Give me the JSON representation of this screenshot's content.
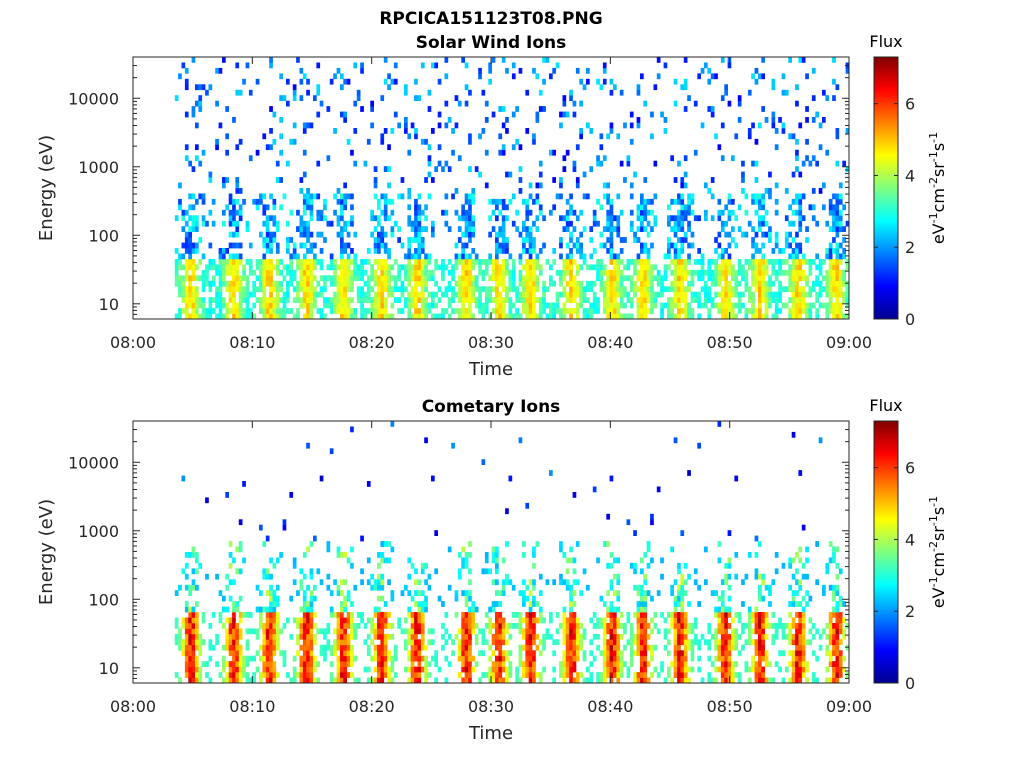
{
  "figure": {
    "filename_title": "RPCICA151123T08.PNG"
  },
  "chart_data": [
    {
      "type": "heatmap",
      "title": "Solar Wind Ions",
      "xlabel": "Time",
      "ylabel": "Energy (eV)",
      "x_ticks": [
        "08:00",
        "08:10",
        "08:20",
        "08:30",
        "08:40",
        "08:50",
        "09:00"
      ],
      "x_range_minutes": [
        0,
        60
      ],
      "y_scale": "log",
      "y_ticks": [
        {
          "value": 10,
          "label": "10"
        },
        {
          "value": 100,
          "label": "100"
        },
        {
          "value": 1000,
          "label": "1000"
        },
        {
          "value": 10000,
          "label": "10000"
        }
      ],
      "ylim": [
        6,
        40000
      ],
      "data_start_minute": 3.5,
      "bursts_minute": [
        4.7,
        8.3,
        11.3,
        14.4,
        17.5,
        20.7,
        23.7,
        27.8,
        30.5,
        33.2,
        36.6,
        40.0,
        42.6,
        45.7,
        49.5,
        52.4,
        55.6,
        58.8
      ],
      "burst_peak_flux": 4.8,
      "background_flux": 2.8,
      "colorbar": {
        "title": "Flux",
        "label": "eV-1cm-2sr-1s-1",
        "range": [
          0,
          7.3
        ],
        "ticks": [
          0,
          2,
          4,
          6
        ],
        "colormap": "jet"
      }
    },
    {
      "type": "heatmap",
      "title": "Cometary Ions",
      "xlabel": "Time",
      "ylabel": "Energy (eV)",
      "x_ticks": [
        "08:00",
        "08:10",
        "08:20",
        "08:30",
        "08:40",
        "08:50",
        "09:00"
      ],
      "x_range_minutes": [
        0,
        60
      ],
      "y_scale": "log",
      "y_ticks": [
        {
          "value": 10,
          "label": "10"
        },
        {
          "value": 100,
          "label": "100"
        },
        {
          "value": 1000,
          "label": "1000"
        },
        {
          "value": 10000,
          "label": "10000"
        }
      ],
      "ylim": [
        6,
        40000
      ],
      "data_start_minute": 3.5,
      "bursts_minute": [
        4.7,
        8.3,
        11.3,
        14.4,
        17.5,
        20.7,
        23.7,
        27.8,
        30.5,
        33.2,
        36.6,
        40.0,
        42.6,
        45.7,
        49.5,
        52.4,
        55.6,
        58.8
      ],
      "burst_peak_flux": 7.0,
      "background_flux": 0.8,
      "colorbar": {
        "title": "Flux",
        "label": "eV-1cm-2sr-1s-1",
        "range": [
          0,
          7.3
        ],
        "ticks": [
          0,
          2,
          4,
          6
        ],
        "colormap": "jet"
      }
    }
  ]
}
